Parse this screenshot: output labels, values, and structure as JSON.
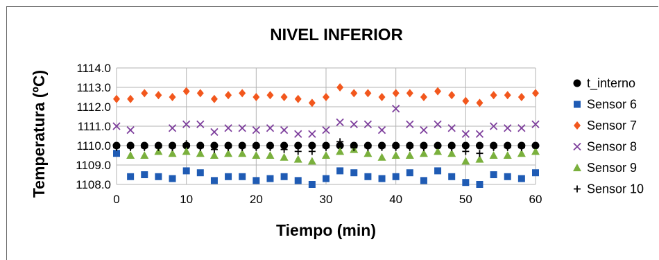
{
  "chart_data": {
    "type": "scatter",
    "title": "NIVEL INFERIOR",
    "xlabel": "Tiempo (min)",
    "ylabel": "Temperatura (ºC)",
    "xlim": [
      0,
      60
    ],
    "ylim": [
      1108.0,
      1114.0
    ],
    "xticks": [
      "0",
      "10",
      "20",
      "30",
      "40",
      "50",
      "60"
    ],
    "xtick_values": [
      0,
      10,
      20,
      30,
      40,
      50,
      60
    ],
    "yticks": [
      "1108.0",
      "1109.0",
      "1110.0",
      "1111.0",
      "1112.0",
      "1113.0",
      "1114.0"
    ],
    "ytick_values": [
      1108,
      1109,
      1110,
      1111,
      1112,
      1113,
      1114
    ],
    "grid": true,
    "legend_position": "right",
    "x": [
      0,
      2,
      4,
      6,
      8,
      10,
      12,
      14,
      16,
      18,
      20,
      22,
      24,
      26,
      28,
      30,
      32,
      34,
      36,
      38,
      40,
      42,
      44,
      46,
      48,
      50,
      52,
      54,
      56,
      58,
      60
    ],
    "series": [
      {
        "name": "t_interno",
        "marker": "circle",
        "color": "#000000",
        "values": [
          1110.0,
          1110.0,
          1110.0,
          1110.0,
          1110.0,
          1110.0,
          1110.0,
          1110.0,
          1110.0,
          1110.0,
          1110.0,
          1110.0,
          1110.0,
          1110.0,
          1110.0,
          1110.0,
          1110.0,
          1110.0,
          1110.0,
          1110.0,
          1110.0,
          1110.0,
          1110.0,
          1110.0,
          1110.0,
          1110.0,
          1110.0,
          1110.0,
          1110.0,
          1110.0,
          1110.0
        ]
      },
      {
        "name": "Sensor 6",
        "marker": "square",
        "color": "#1f5bb4",
        "values": [
          1109.6,
          1108.4,
          1108.5,
          1108.4,
          1108.3,
          1108.7,
          1108.6,
          1108.2,
          1108.4,
          1108.4,
          1108.2,
          1108.3,
          1108.4,
          1108.2,
          1108.0,
          1108.3,
          1108.7,
          1108.6,
          1108.4,
          1108.3,
          1108.4,
          1108.6,
          1108.2,
          1108.7,
          1108.4,
          1108.1,
          1108.0,
          1108.5,
          1108.4,
          1108.3,
          1108.6
        ]
      },
      {
        "name": "Sensor 7",
        "marker": "diamond",
        "color": "#f2571d",
        "values": [
          1112.4,
          1112.4,
          1112.7,
          1112.6,
          1112.5,
          1112.8,
          1112.7,
          1112.4,
          1112.6,
          1112.7,
          1112.5,
          1112.6,
          1112.5,
          1112.4,
          1112.2,
          1112.5,
          1113.0,
          1112.7,
          1112.7,
          1112.5,
          1112.7,
          1112.7,
          1112.5,
          1112.8,
          1112.6,
          1112.3,
          1112.2,
          1112.6,
          1112.6,
          1112.5,
          1112.7
        ]
      },
      {
        "name": "Sensor 8",
        "marker": "x",
        "color": "#7d3e9c",
        "values": [
          1111.0,
          1110.8,
          null,
          null,
          1110.9,
          1111.1,
          1111.1,
          1110.7,
          1110.9,
          1110.9,
          1110.8,
          1110.9,
          1110.8,
          1110.6,
          1110.6,
          1110.8,
          1111.2,
          1111.1,
          1111.1,
          1110.8,
          1111.9,
          1111.1,
          1110.8,
          1111.1,
          1110.9,
          1110.6,
          1110.6,
          1111.0,
          1110.9,
          1110.9,
          1111.1
        ]
      },
      {
        "name": "Sensor 9",
        "marker": "triangle",
        "color": "#7ab03d",
        "values": [
          null,
          1109.5,
          1109.5,
          1109.7,
          1109.6,
          1109.7,
          1109.6,
          1109.5,
          1109.6,
          1109.6,
          1109.5,
          1109.5,
          1109.4,
          1109.3,
          1109.2,
          1109.5,
          1109.7,
          1109.8,
          1109.6,
          1109.4,
          1109.5,
          1109.5,
          1109.6,
          1109.7,
          1109.6,
          1109.2,
          1109.3,
          1109.5,
          1109.5,
          1109.6,
          1109.7
        ]
      },
      {
        "name": "Sensor 10",
        "marker": "plus",
        "color": "#000000",
        "values": [
          1109.9,
          1109.9,
          1109.9,
          1109.9,
          1109.9,
          1110.1,
          1109.9,
          1109.8,
          1109.9,
          1109.9,
          1109.9,
          1109.9,
          1109.8,
          1109.7,
          1109.7,
          1109.9,
          1110.2,
          1109.9,
          1109.9,
          1109.9,
          1109.9,
          1109.9,
          1109.9,
          1110.0,
          1109.9,
          1109.7,
          1109.6,
          1109.9,
          1109.9,
          1109.9,
          1110.0
        ]
      }
    ]
  }
}
